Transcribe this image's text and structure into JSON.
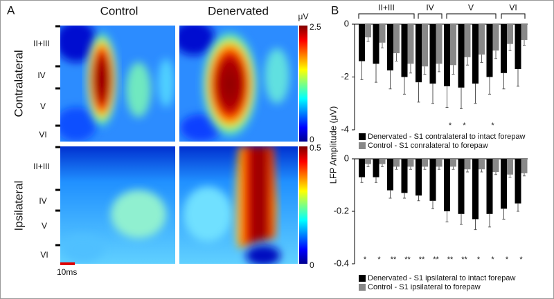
{
  "panel_a": {
    "label": "A",
    "columns": [
      "Control",
      "Denervated"
    ],
    "rows": [
      "Contralateral",
      "Ipsilateral"
    ],
    "colorbar_unit": "μV",
    "colorbars": [
      {
        "max": "2.5",
        "min": "0"
      },
      {
        "max": "0.5",
        "min": "0"
      }
    ],
    "layers": [
      "II+III",
      "IV",
      "V",
      "VI"
    ],
    "scale_bar": "10ms"
  },
  "panel_b_label": "B",
  "chart_data": [
    {
      "type": "bar",
      "y_label": "LFP Amplitude (μV)",
      "layer_labels": [
        "II+III",
        "IV",
        "V",
        "VI"
      ],
      "ylim": [
        -4,
        0
      ],
      "yticks": [
        0,
        -2,
        -4
      ],
      "series": [
        {
          "name": "Denervated - S1 contralateral to intact forepaw",
          "color": "#000000",
          "values": [
            -1.4,
            -1.5,
            -1.75,
            -2.0,
            -2.2,
            -2.25,
            -2.35,
            -2.4,
            -2.25,
            -2.0,
            -1.85,
            -1.7
          ],
          "errors": [
            0.7,
            0.7,
            0.7,
            0.65,
            0.75,
            0.75,
            0.8,
            0.8,
            0.75,
            0.65,
            0.6,
            0.65
          ]
        },
        {
          "name": "Control - S1 conralateral to forepaw",
          "color": "#888888",
          "values": [
            -0.5,
            -0.7,
            -1.1,
            -1.5,
            -1.6,
            -1.5,
            -1.55,
            -1.25,
            -1.15,
            -1.0,
            -0.75,
            -0.6
          ],
          "errors": [
            0.15,
            0.2,
            0.3,
            0.35,
            0.3,
            0.3,
            0.35,
            0.3,
            0.3,
            0.3,
            0.25,
            0.2
          ]
        }
      ],
      "significance": [
        null,
        null,
        null,
        null,
        null,
        null,
        "*",
        "*",
        null,
        "*",
        null,
        null
      ]
    },
    {
      "type": "bar",
      "ylim": [
        -0.4,
        0
      ],
      "yticks": [
        0,
        -0.2,
        -0.4
      ],
      "series": [
        {
          "name": "Denervated - S1 ipsilateral to intact forepaw",
          "color": "#000000",
          "values": [
            -0.07,
            -0.07,
            -0.12,
            -0.13,
            -0.14,
            -0.16,
            -0.2,
            -0.21,
            -0.23,
            -0.21,
            -0.19,
            -0.17
          ],
          "errors": [
            0.02,
            0.02,
            0.03,
            0.02,
            0.02,
            0.03,
            0.04,
            0.04,
            0.04,
            0.05,
            0.04,
            0.03
          ]
        },
        {
          "name": "Control - S1 ipsilateral to forepaw",
          "color": "#888888",
          "values": [
            -0.02,
            -0.02,
            -0.03,
            -0.03,
            -0.03,
            -0.03,
            -0.03,
            -0.04,
            -0.04,
            -0.05,
            -0.06,
            -0.055
          ],
          "errors": [
            0.01,
            0.01,
            0.01,
            0.01,
            0.01,
            0.01,
            0.01,
            0.01,
            0.01,
            0.01,
            0.01,
            0.01
          ]
        }
      ],
      "significance": [
        "*",
        "*",
        "**",
        "**",
        "**",
        "**",
        "**",
        "**",
        "*",
        "*",
        "*",
        "*"
      ]
    }
  ]
}
